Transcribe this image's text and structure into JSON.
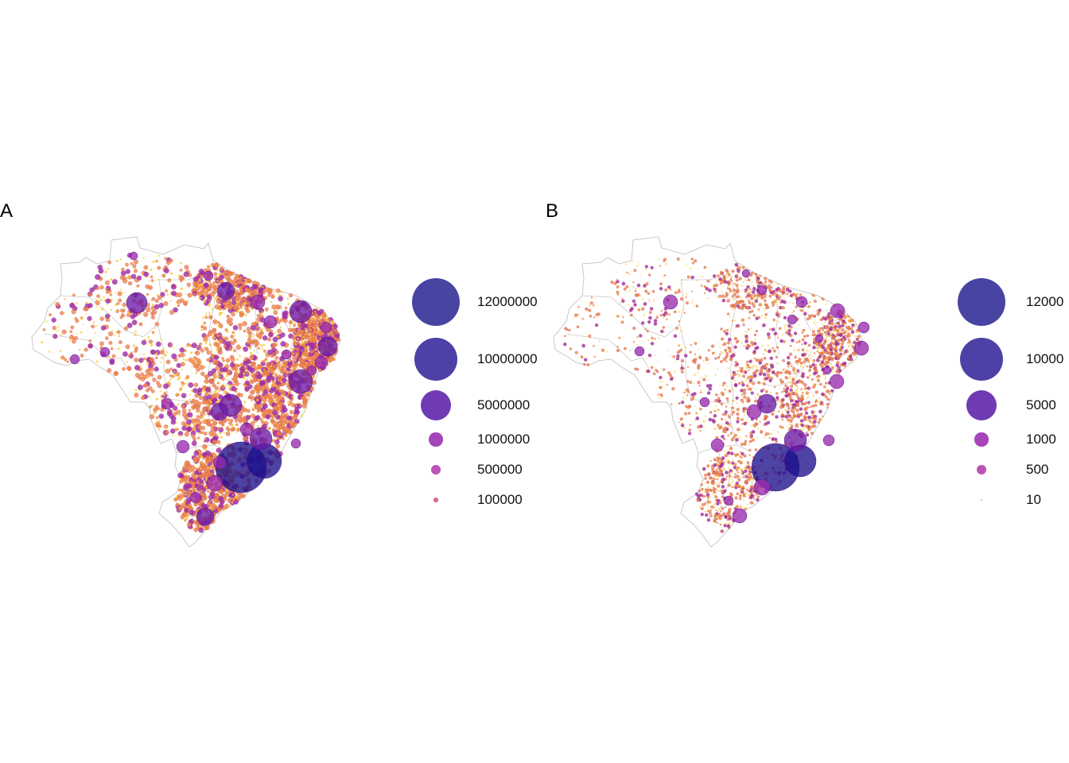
{
  "panels": [
    {
      "id": "A",
      "tag": "A",
      "legend": {
        "entries": [
          {
            "label": "12000000",
            "value": 12000000,
            "color": "#2d2a95"
          },
          {
            "label": "10000000",
            "value": 10000000,
            "color": "#34259a"
          },
          {
            "label": "5000000",
            "value": 5000000,
            "color": "#5b1fa8"
          },
          {
            "label": "1000000",
            "value": 1000000,
            "color": "#9a2ab0"
          },
          {
            "label": "500000",
            "value": 500000,
            "color": "#b43aac"
          },
          {
            "label": "100000",
            "value": 100000,
            "color": "#d5527e"
          }
        ]
      }
    },
    {
      "id": "B",
      "tag": "B",
      "legend": {
        "entries": [
          {
            "label": "12000",
            "value": 12000,
            "color": "#2d2a95"
          },
          {
            "label": "10000",
            "value": 10000,
            "color": "#34259a"
          },
          {
            "label": "5000",
            "value": 5000,
            "color": "#5b1fa8"
          },
          {
            "label": "1000",
            "value": 1000,
            "color": "#9a2ab0"
          },
          {
            "label": "500",
            "value": 500,
            "color": "#b43aac"
          },
          {
            "label": "10",
            "value": 10,
            "color": "#f0a030"
          }
        ]
      }
    }
  ],
  "colors": {
    "boundary": "#c8c8c8",
    "land": "#ffffff",
    "low": "#f9c93a",
    "mid": "#f0864a",
    "high": "#9a2ab0",
    "top": "#1c0f8c"
  }
}
